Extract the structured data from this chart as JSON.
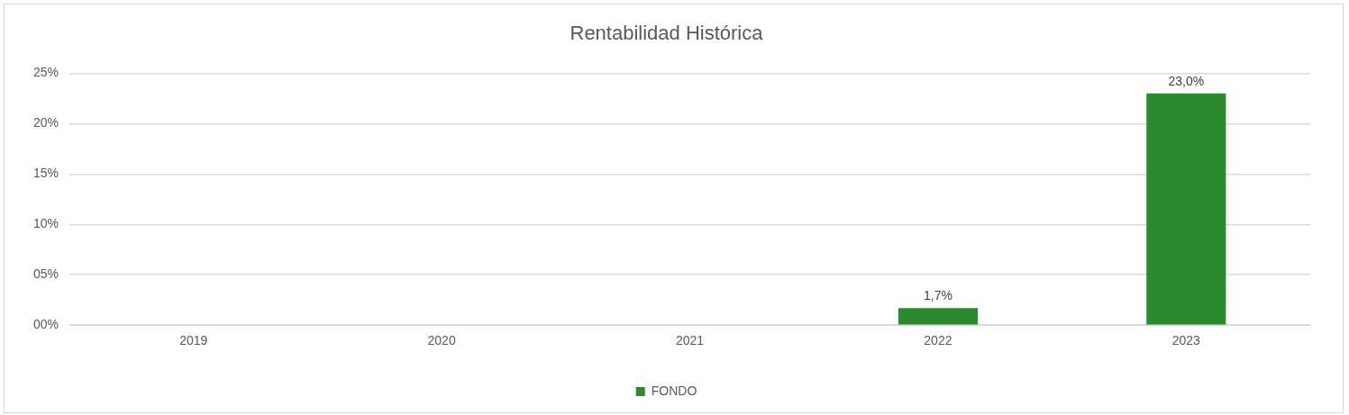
{
  "chart_data": {
    "type": "bar",
    "title": "Rentabilidad Histórica",
    "categories": [
      "2019",
      "2020",
      "2021",
      "2022",
      "2023"
    ],
    "series": [
      {
        "name": "FONDO",
        "color": "#2b8a2e",
        "values": [
          null,
          null,
          null,
          1.7,
          23.0
        ],
        "value_labels": [
          null,
          null,
          null,
          "1,7%",
          "23,0%"
        ]
      }
    ],
    "ylim": [
      0,
      25
    ],
    "yticks": [
      {
        "value": 0,
        "label": "00%"
      },
      {
        "value": 5,
        "label": "05%"
      },
      {
        "value": 10,
        "label": "10%"
      },
      {
        "value": 15,
        "label": "15%"
      },
      {
        "value": 20,
        "label": "20%"
      },
      {
        "value": 25,
        "label": "25%"
      }
    ],
    "grid": "y",
    "legend": "bottom"
  }
}
